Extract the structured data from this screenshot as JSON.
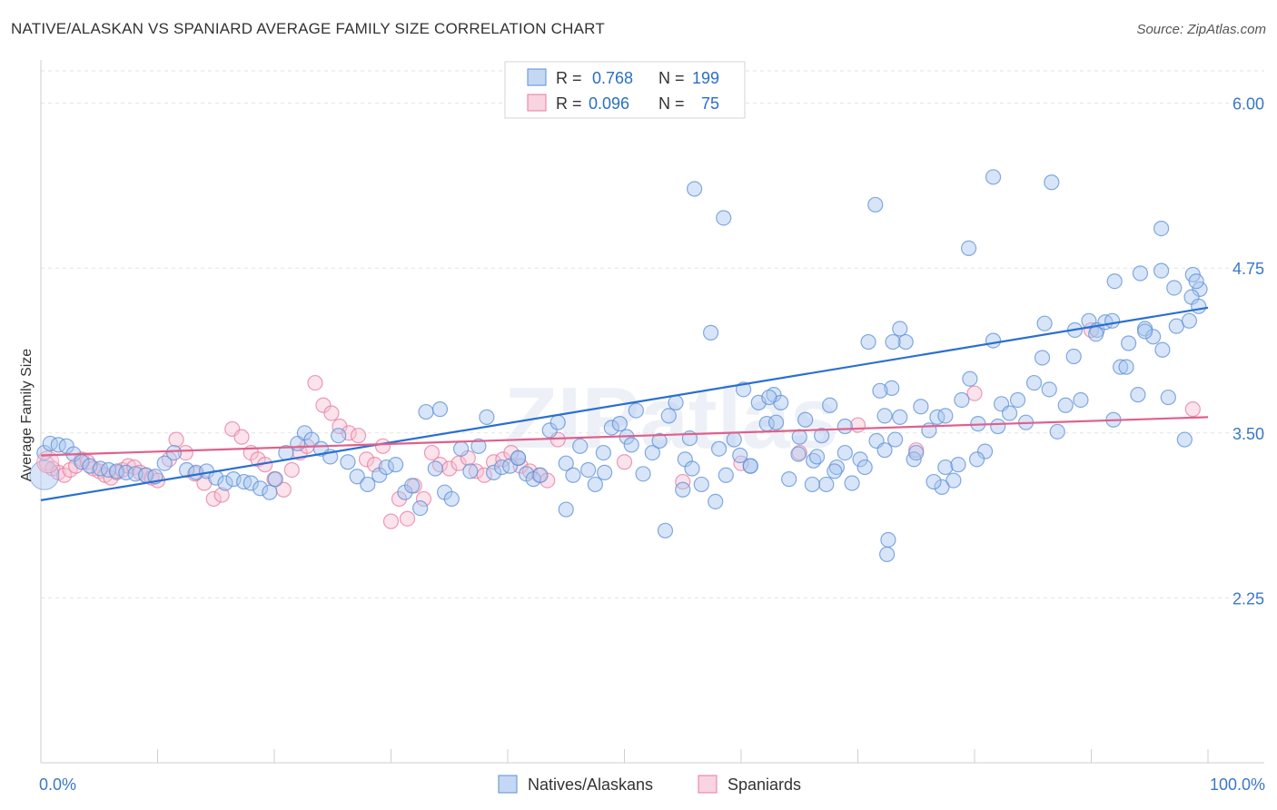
{
  "header": {
    "title": "NATIVE/ALASKAN VS SPANIARD AVERAGE FAMILY SIZE CORRELATION CHART",
    "source": "Source: ZipAtlas.com"
  },
  "watermark": "ZIPatlas",
  "chart_data": {
    "type": "scatter",
    "xlabel": "",
    "ylabel": "Average Family Size",
    "xlim": [
      0,
      100
    ],
    "ylim": [
      1.0,
      6.3
    ],
    "x_tick_labels": [
      "0.0%",
      "100.0%"
    ],
    "y_ticks": [
      2.25,
      3.5,
      4.75,
      6.0
    ],
    "y_tick_labels": [
      "2.25",
      "3.50",
      "4.75",
      "6.00"
    ],
    "grid": true,
    "legend_top": [
      {
        "r_label": "R =",
        "r_value": "0.768",
        "n_label": "N =",
        "n_value": "199",
        "color": "#5b8fd6"
      },
      {
        "r_label": "R =",
        "r_value": "0.096",
        "n_label": "N =",
        "n_value": "75",
        "color": "#e87aa0"
      }
    ],
    "series": [
      {
        "name": "Natives/Alaskans",
        "color": "#5b8fd6",
        "fill": "#a9c6ef",
        "trend": {
          "x": [
            0,
            100
          ],
          "y": [
            2.99,
            4.45
          ]
        },
        "points": [
          [
            0.3,
            3.35
          ],
          [
            0.8,
            3.42
          ],
          [
            1.5,
            3.41
          ],
          [
            2.2,
            3.4
          ],
          [
            2.8,
            3.34
          ],
          [
            3.5,
            3.28
          ],
          [
            4.2,
            3.25
          ],
          [
            5.1,
            3.23
          ],
          [
            5.8,
            3.22
          ],
          [
            6.5,
            3.21
          ],
          [
            7.3,
            3.2
          ],
          [
            8.1,
            3.19
          ],
          [
            9.0,
            3.18
          ],
          [
            9.8,
            3.17
          ],
          [
            10.6,
            3.27
          ],
          [
            11.4,
            3.35
          ],
          [
            12.5,
            3.22
          ],
          [
            13.3,
            3.2
          ],
          [
            14.2,
            3.21
          ],
          [
            15.0,
            3.16
          ],
          [
            15.8,
            3.12
          ],
          [
            16.5,
            3.15
          ],
          [
            17.4,
            3.13
          ],
          [
            18.0,
            3.12
          ],
          [
            18.8,
            3.08
          ],
          [
            19.6,
            3.05
          ],
          [
            20.1,
            3.15
          ],
          [
            21.0,
            3.35
          ],
          [
            22.0,
            3.42
          ],
          [
            22.6,
            3.5
          ],
          [
            23.2,
            3.45
          ],
          [
            24.0,
            3.38
          ],
          [
            24.8,
            3.32
          ],
          [
            25.5,
            3.48
          ],
          [
            26.3,
            3.28
          ],
          [
            27.1,
            3.17
          ],
          [
            28.0,
            3.11
          ],
          [
            29.0,
            3.18
          ],
          [
            29.6,
            3.24
          ],
          [
            30.4,
            3.26
          ],
          [
            31.2,
            3.05
          ],
          [
            31.8,
            3.1
          ],
          [
            32.5,
            2.93
          ],
          [
            33.0,
            3.66
          ],
          [
            33.8,
            3.23
          ],
          [
            34.6,
            3.05
          ],
          [
            35.2,
            3.0
          ],
          [
            36.0,
            3.38
          ],
          [
            36.8,
            3.21
          ],
          [
            37.5,
            3.4
          ],
          [
            38.2,
            3.62
          ],
          [
            38.8,
            3.2
          ],
          [
            39.5,
            3.24
          ],
          [
            40.2,
            3.25
          ],
          [
            40.9,
            3.31
          ],
          [
            41.6,
            3.19
          ],
          [
            42.2,
            3.15
          ],
          [
            42.8,
            3.18
          ],
          [
            43.6,
            3.52
          ],
          [
            44.3,
            3.58
          ],
          [
            45.0,
            3.27
          ],
          [
            45.6,
            3.18
          ],
          [
            46.2,
            3.4
          ],
          [
            46.9,
            3.22
          ],
          [
            47.5,
            3.11
          ],
          [
            48.3,
            3.2
          ],
          [
            48.9,
            3.54
          ],
          [
            49.6,
            3.57
          ],
          [
            50.2,
            3.47
          ],
          [
            51.0,
            3.67
          ],
          [
            51.6,
            3.19
          ],
          [
            52.4,
            3.35
          ],
          [
            53.0,
            3.44
          ],
          [
            53.8,
            3.63
          ],
          [
            54.4,
            3.73
          ],
          [
            55.2,
            3.3
          ],
          [
            55.8,
            3.23
          ],
          [
            56.6,
            3.11
          ],
          [
            57.4,
            4.26
          ],
          [
            58.1,
            3.38
          ],
          [
            58.7,
            3.18
          ],
          [
            59.4,
            3.45
          ],
          [
            60.2,
            3.83
          ],
          [
            60.8,
            3.25
          ],
          [
            61.5,
            3.73
          ],
          [
            62.2,
            3.57
          ],
          [
            62.8,
            3.79
          ],
          [
            63.4,
            3.73
          ],
          [
            64.1,
            3.15
          ],
          [
            64.9,
            3.34
          ],
          [
            65.5,
            3.6
          ],
          [
            66.2,
            3.29
          ],
          [
            66.9,
            3.48
          ],
          [
            67.6,
            3.71
          ],
          [
            68.2,
            3.24
          ],
          [
            68.9,
            3.55
          ],
          [
            69.5,
            3.12
          ],
          [
            70.2,
            3.3
          ],
          [
            70.9,
            4.19
          ],
          [
            71.6,
            3.44
          ],
          [
            72.3,
            3.63
          ],
          [
            72.9,
            3.84
          ],
          [
            73.6,
            4.29
          ],
          [
            74.1,
            4.19
          ],
          [
            74.8,
            3.3
          ],
          [
            75.4,
            3.7
          ],
          [
            76.1,
            3.52
          ],
          [
            76.8,
            3.62
          ],
          [
            77.5,
            3.24
          ],
          [
            78.2,
            3.14
          ],
          [
            78.9,
            3.75
          ],
          [
            79.6,
            3.91
          ],
          [
            80.3,
            3.57
          ],
          [
            80.9,
            3.36
          ],
          [
            81.6,
            4.2
          ],
          [
            82.3,
            3.72
          ],
          [
            83.0,
            3.65
          ],
          [
            83.7,
            3.75
          ],
          [
            84.4,
            3.58
          ],
          [
            85.1,
            3.88
          ],
          [
            85.8,
            4.07
          ],
          [
            86.4,
            3.83
          ],
          [
            87.1,
            3.51
          ],
          [
            87.8,
            3.71
          ],
          [
            88.5,
            4.08
          ],
          [
            89.1,
            3.75
          ],
          [
            89.8,
            4.35
          ],
          [
            90.5,
            4.28
          ],
          [
            91.2,
            4.34
          ],
          [
            91.9,
            3.6
          ],
          [
            92.5,
            4.0
          ],
          [
            93.2,
            4.18
          ],
          [
            94.0,
            3.79
          ],
          [
            94.6,
            4.29
          ],
          [
            95.3,
            4.23
          ],
          [
            96.0,
            4.73
          ],
          [
            96.6,
            3.77
          ],
          [
            97.3,
            4.31
          ],
          [
            98.0,
            3.45
          ],
          [
            98.7,
            4.7
          ],
          [
            99.3,
            4.59
          ],
          [
            56.0,
            5.35
          ],
          [
            71.5,
            5.23
          ],
          [
            58.5,
            5.13
          ],
          [
            81.6,
            5.44
          ],
          [
            86.6,
            5.4
          ],
          [
            79.5,
            4.9
          ],
          [
            92.0,
            4.65
          ],
          [
            94.2,
            4.71
          ],
          [
            96.0,
            5.05
          ],
          [
            90.4,
            4.25
          ],
          [
            93.0,
            4.0
          ],
          [
            97.1,
            4.6
          ],
          [
            99.0,
            4.65
          ],
          [
            86.0,
            4.33
          ],
          [
            88.6,
            4.28
          ],
          [
            91.8,
            4.35
          ],
          [
            94.6,
            4.27
          ],
          [
            96.1,
            4.13
          ],
          [
            98.4,
            4.35
          ],
          [
            98.6,
            4.53
          ],
          [
            99.2,
            4.46
          ],
          [
            45.0,
            2.92
          ],
          [
            53.5,
            2.76
          ],
          [
            72.5,
            2.58
          ],
          [
            57.8,
            2.98
          ],
          [
            67.3,
            3.11
          ],
          [
            48.2,
            3.35
          ],
          [
            50.6,
            3.41
          ],
          [
            34.2,
            3.68
          ],
          [
            40.9,
            3.31
          ],
          [
            62.4,
            3.77
          ],
          [
            66.1,
            3.11
          ],
          [
            63.0,
            3.58
          ],
          [
            55.0,
            3.07
          ],
          [
            59.9,
            3.33
          ],
          [
            68.9,
            3.35
          ],
          [
            73.2,
            3.45
          ],
          [
            68.0,
            3.21
          ],
          [
            60.8,
            3.25
          ],
          [
            70.6,
            3.24
          ],
          [
            65.0,
            3.47
          ],
          [
            55.6,
            3.46
          ],
          [
            66.5,
            3.32
          ],
          [
            75.0,
            3.35
          ],
          [
            77.2,
            3.09
          ],
          [
            71.9,
            3.82
          ],
          [
            72.3,
            3.37
          ],
          [
            73.6,
            3.62
          ],
          [
            77.5,
            3.63
          ],
          [
            78.6,
            3.26
          ],
          [
            80.2,
            3.3
          ],
          [
            82.0,
            3.55
          ],
          [
            72.6,
            2.69
          ],
          [
            76.5,
            3.13
          ],
          [
            73.0,
            4.19
          ]
        ]
      },
      {
        "name": "Spaniards",
        "color": "#e87aa0",
        "fill": "#f5c0d2",
        "trend": {
          "x": [
            0,
            100
          ],
          "y": [
            3.33,
            3.62
          ]
        },
        "points": [
          [
            0.5,
            3.27
          ],
          [
            1.0,
            3.23
          ],
          [
            1.5,
            3.2
          ],
          [
            2.0,
            3.18
          ],
          [
            2.5,
            3.22
          ],
          [
            3.0,
            3.25
          ],
          [
            3.5,
            3.3
          ],
          [
            4.0,
            3.28
          ],
          [
            4.5,
            3.23
          ],
          [
            5.0,
            3.21
          ],
          [
            5.5,
            3.18
          ],
          [
            6.0,
            3.16
          ],
          [
            6.5,
            3.2
          ],
          [
            7.0,
            3.22
          ],
          [
            7.5,
            3.25
          ],
          [
            8.0,
            3.24
          ],
          [
            8.5,
            3.2
          ],
          [
            9.0,
            3.18
          ],
          [
            9.5,
            3.16
          ],
          [
            10.0,
            3.14
          ],
          [
            11.0,
            3.3
          ],
          [
            11.6,
            3.45
          ],
          [
            12.4,
            3.35
          ],
          [
            13.2,
            3.19
          ],
          [
            14.0,
            3.12
          ],
          [
            14.8,
            3.0
          ],
          [
            15.5,
            3.03
          ],
          [
            16.4,
            3.53
          ],
          [
            17.2,
            3.47
          ],
          [
            18.0,
            3.35
          ],
          [
            18.6,
            3.3
          ],
          [
            19.2,
            3.26
          ],
          [
            20.0,
            3.15
          ],
          [
            20.8,
            3.07
          ],
          [
            21.5,
            3.22
          ],
          [
            22.2,
            3.35
          ],
          [
            22.8,
            3.4
          ],
          [
            23.5,
            3.88
          ],
          [
            24.2,
            3.71
          ],
          [
            24.9,
            3.65
          ],
          [
            25.6,
            3.55
          ],
          [
            26.4,
            3.5
          ],
          [
            27.2,
            3.48
          ],
          [
            27.9,
            3.3
          ],
          [
            28.6,
            3.26
          ],
          [
            29.3,
            3.4
          ],
          [
            30.0,
            2.83
          ],
          [
            30.7,
            3.0
          ],
          [
            31.4,
            2.85
          ],
          [
            32.0,
            3.1
          ],
          [
            32.8,
            3.0
          ],
          [
            33.5,
            3.35
          ],
          [
            34.2,
            3.26
          ],
          [
            35.0,
            3.23
          ],
          [
            35.8,
            3.27
          ],
          [
            36.6,
            3.31
          ],
          [
            37.3,
            3.21
          ],
          [
            38.0,
            3.18
          ],
          [
            38.8,
            3.28
          ],
          [
            39.6,
            3.3
          ],
          [
            40.3,
            3.35
          ],
          [
            41.1,
            3.25
          ],
          [
            41.9,
            3.21
          ],
          [
            42.7,
            3.18
          ],
          [
            43.4,
            3.14
          ],
          [
            44.3,
            3.45
          ],
          [
            50.0,
            3.28
          ],
          [
            55.0,
            3.13
          ],
          [
            60.0,
            3.27
          ],
          [
            65.0,
            3.35
          ],
          [
            70.0,
            3.56
          ],
          [
            75.0,
            3.37
          ],
          [
            80.0,
            3.8
          ],
          [
            90.0,
            4.28
          ],
          [
            98.7,
            3.68
          ]
        ]
      }
    ]
  },
  "legend_bottom": [
    {
      "label": "Natives/Alaskans",
      "color": "#5b8fd6",
      "fill": "#c4d8f3"
    },
    {
      "label": "Spaniards",
      "color": "#e87aa0",
      "fill": "#f8d3e0"
    }
  ]
}
